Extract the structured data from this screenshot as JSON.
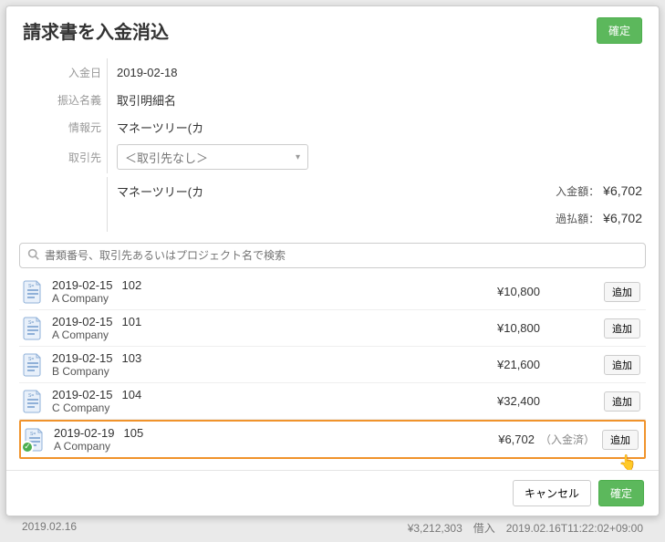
{
  "header": {
    "title": "請求書を入金消込",
    "confirm": "確定"
  },
  "form": {
    "date_label": "入金日",
    "date_value": "2019-02-18",
    "name_label": "振込名義",
    "name_value": "取引明細名",
    "source_label": "情報元",
    "source_value": "マネーツリー(カ",
    "client_label": "取引先",
    "client_select": "＜取引先なし＞"
  },
  "summary": {
    "source_text": "マネーツリー(カ",
    "in_label": "入金額：",
    "in_amount": "¥6,702",
    "over_label": "過払額：",
    "over_amount": "¥6,702"
  },
  "search": {
    "placeholder": "書類番号、取引先あるいはプロジェクト名で検索"
  },
  "add_label": "追加",
  "items": [
    {
      "date": "2019-02-15",
      "no": "102",
      "company": "A Company",
      "amount": "¥10,800",
      "status": "",
      "check": false
    },
    {
      "date": "2019-02-15",
      "no": "101",
      "company": "A Company",
      "amount": "¥10,800",
      "status": "",
      "check": false
    },
    {
      "date": "2019-02-15",
      "no": "103",
      "company": "B Company",
      "amount": "¥21,600",
      "status": "",
      "check": false
    },
    {
      "date": "2019-02-15",
      "no": "104",
      "company": "C Company",
      "amount": "¥32,400",
      "status": "",
      "check": false
    },
    {
      "date": "2019-02-19",
      "no": "105",
      "company": "A Company",
      "amount": "¥6,702",
      "status": "（入金済）",
      "check": true,
      "highlight": true
    }
  ],
  "footer": {
    "cancel": "キャンセル",
    "confirm": "確定"
  },
  "bgstrip": {
    "left": "2019.02.16",
    "right": "¥3,212,303　借入　2019.02.16T11:22:02+09:00"
  }
}
